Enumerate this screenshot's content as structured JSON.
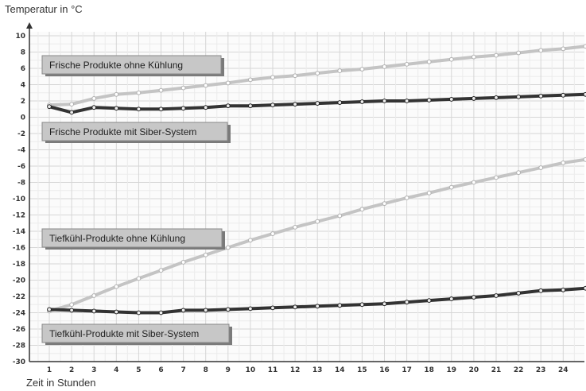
{
  "chart_data": {
    "type": "line",
    "ylabel": "Temperatur in °C",
    "xlabel": "Zeit in Stunden",
    "x": [
      1,
      2,
      3,
      4,
      5,
      6,
      7,
      8,
      9,
      10,
      11,
      12,
      13,
      14,
      15,
      16,
      17,
      18,
      19,
      20,
      21,
      22,
      23,
      24,
      25
    ],
    "x_tick_labels": [
      "1",
      "2",
      "3",
      "4",
      "5",
      "6",
      "7",
      "8",
      "9",
      "10",
      "11",
      "12",
      "13",
      "14",
      "15",
      "16",
      "17",
      "18",
      "19",
      "20",
      "21",
      "22",
      "23",
      "24"
    ],
    "y_tick_labels": [
      "10",
      "8",
      "6",
      "4",
      "2",
      "0",
      "-2",
      "-4",
      "-6",
      "-8",
      "-10",
      "-12",
      "-14",
      "-16",
      "-18",
      "-20",
      "-22",
      "-24",
      "-26",
      "-28",
      "-30"
    ],
    "ylim": [
      -30,
      10
    ],
    "grid": true,
    "series": [
      {
        "name": "Frische Produkte ohne Kühlung",
        "color": "#c4c4c4",
        "values": [
          1.5,
          1.6,
          2.3,
          2.8,
          3.0,
          3.3,
          3.6,
          3.9,
          4.2,
          4.6,
          4.9,
          5.1,
          5.4,
          5.7,
          5.9,
          6.2,
          6.5,
          6.8,
          7.1,
          7.4,
          7.6,
          7.9,
          8.2,
          8.4,
          8.7
        ]
      },
      {
        "name": "Frische Produkte mit Siber-System",
        "color": "#333333",
        "values": [
          1.3,
          0.6,
          1.2,
          1.1,
          1.0,
          1.0,
          1.1,
          1.2,
          1.4,
          1.4,
          1.5,
          1.6,
          1.7,
          1.8,
          1.9,
          2.0,
          2.0,
          2.1,
          2.2,
          2.3,
          2.4,
          2.5,
          2.6,
          2.7,
          2.8
        ]
      },
      {
        "name": "Tiefkühl-Produkte ohne Kühlung",
        "color": "#c4c4c4",
        "values": [
          -23.8,
          -23.0,
          -21.9,
          -20.8,
          -19.8,
          -18.8,
          -17.8,
          -16.9,
          -16.0,
          -15.1,
          -14.3,
          -13.5,
          -12.8,
          -12.1,
          -11.3,
          -10.6,
          -9.9,
          -9.3,
          -8.6,
          -8.0,
          -7.4,
          -6.8,
          -6.2,
          -5.6,
          -5.2
        ]
      },
      {
        "name": "Tiefkühl-Produkte mit Siber-System",
        "color": "#333333",
        "values": [
          -23.6,
          -23.7,
          -23.8,
          -23.9,
          -24.0,
          -24.0,
          -23.7,
          -23.7,
          -23.6,
          -23.5,
          -23.4,
          -23.3,
          -23.2,
          -23.1,
          -23.0,
          -22.9,
          -22.7,
          -22.5,
          -22.3,
          -22.1,
          -21.9,
          -21.6,
          -21.3,
          -21.2,
          -21.0
        ]
      }
    ]
  },
  "annotations": [
    {
      "text": "Frische Produkte ohne Kühlung"
    },
    {
      "text": "Frische Produkte mit Siber-System"
    },
    {
      "text": "Tiefkühl-Produkte ohne Kühlung"
    },
    {
      "text": "Tiefkühl-Produkte mit Siber-System"
    }
  ]
}
